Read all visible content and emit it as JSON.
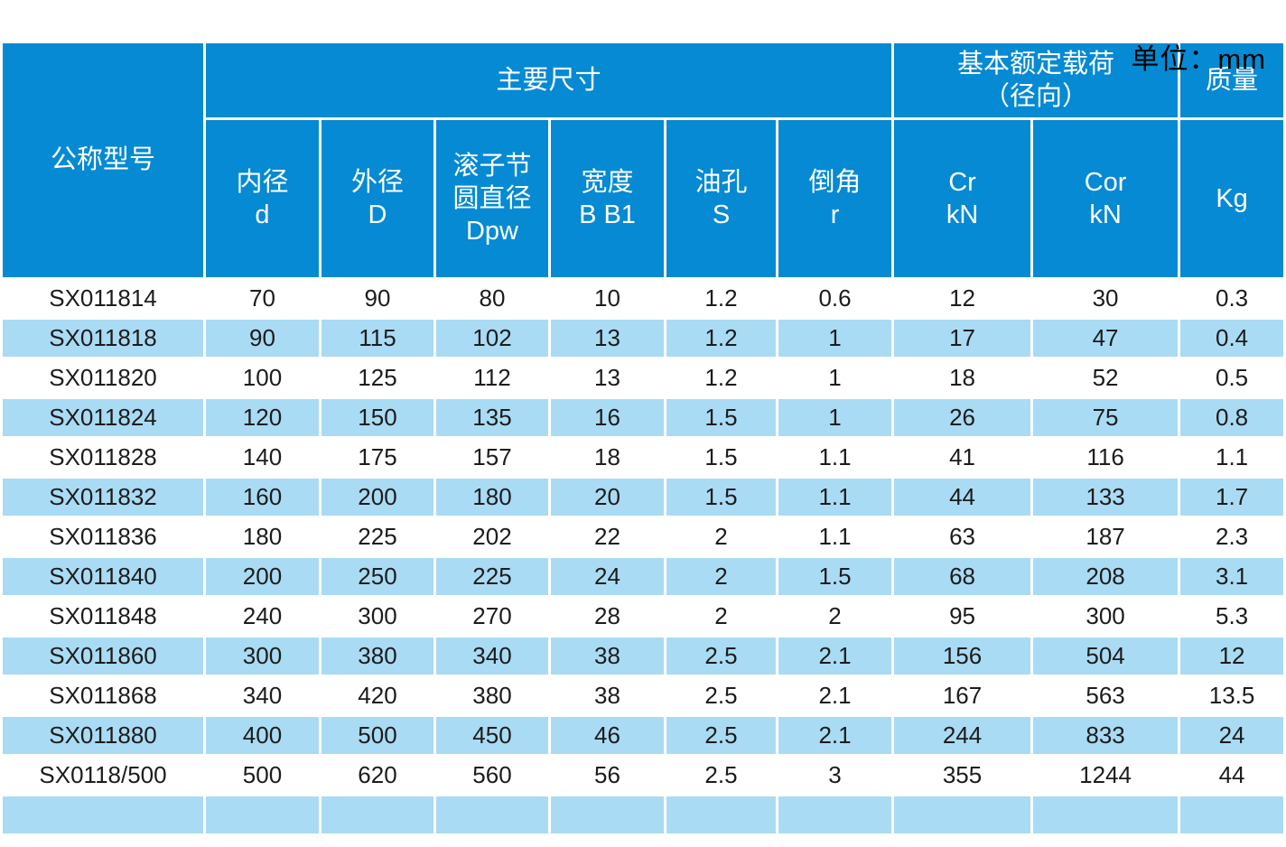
{
  "unit_label": "单位：mm",
  "chart_data": {
    "type": "table",
    "unit": "单位：mm",
    "header": {
      "model": "公称型号",
      "main_dims_group": "主要尺寸",
      "load_group": "基本额定载荷\n（径向）",
      "mass_group": "质量",
      "sub": [
        "内径\nd",
        "外径\nD",
        "滚子节\n圆直径\nDpw",
        "宽度\nB B1",
        "油孔\nS",
        "倒角\nr",
        "Cr\nkN",
        "Cor\nkN",
        "Kg"
      ]
    },
    "rows": [
      [
        "SX011814",
        "70",
        "90",
        "80",
        "10",
        "1.2",
        "0.6",
        "12",
        "30",
        "0.3"
      ],
      [
        "SX011818",
        "90",
        "115",
        "102",
        "13",
        "1.2",
        "1",
        "17",
        "47",
        "0.4"
      ],
      [
        "SX011820",
        "100",
        "125",
        "112",
        "13",
        "1.2",
        "1",
        "18",
        "52",
        "0.5"
      ],
      [
        "SX011824",
        "120",
        "150",
        "135",
        "16",
        "1.5",
        "1",
        "26",
        "75",
        "0.8"
      ],
      [
        "SX011828",
        "140",
        "175",
        "157",
        "18",
        "1.5",
        "1.1",
        "41",
        "116",
        "1.1"
      ],
      [
        "SX011832",
        "160",
        "200",
        "180",
        "20",
        "1.5",
        "1.1",
        "44",
        "133",
        "1.7"
      ],
      [
        "SX011836",
        "180",
        "225",
        "202",
        "22",
        "2",
        "1.1",
        "63",
        "187",
        "2.3"
      ],
      [
        "SX011840",
        "200",
        "250",
        "225",
        "24",
        "2",
        "1.5",
        "68",
        "208",
        "3.1"
      ],
      [
        "SX011848",
        "240",
        "300",
        "270",
        "28",
        "2",
        "2",
        "95",
        "300",
        "5.3"
      ],
      [
        "SX011860",
        "300",
        "380",
        "340",
        "38",
        "2.5",
        "2.1",
        "156",
        "504",
        "12"
      ],
      [
        "SX011868",
        "340",
        "420",
        "380",
        "38",
        "2.5",
        "2.1",
        "167",
        "563",
        "13.5"
      ],
      [
        "SX011880",
        "400",
        "500",
        "450",
        "46",
        "2.5",
        "2.1",
        "244",
        "833",
        "24"
      ],
      [
        "SX0118/500",
        "500",
        "620",
        "560",
        "56",
        "2.5",
        "3",
        "355",
        "1244",
        "44"
      ]
    ],
    "colors": {
      "header_bg": "#058ad3",
      "row_alt_bg": "#a9dbf4",
      "row_bg": "#ffffff",
      "header_text": "#ffffff",
      "body_text": "#1c1c1c"
    }
  }
}
